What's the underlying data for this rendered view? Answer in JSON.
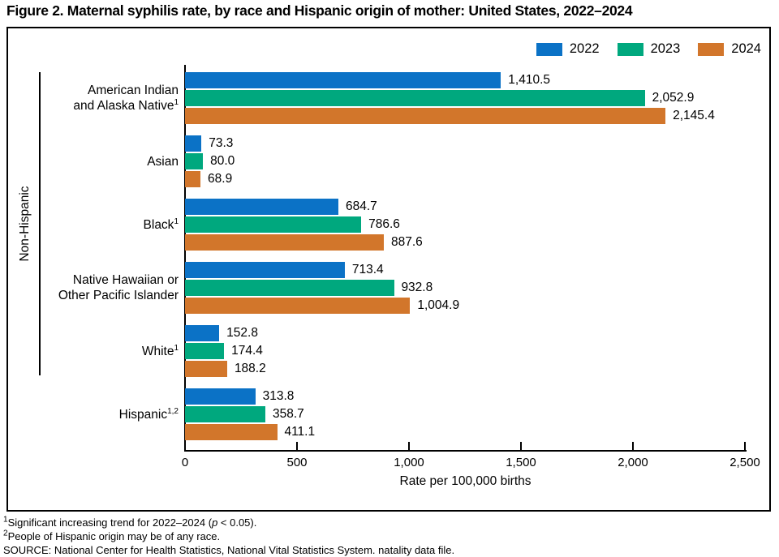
{
  "page_title": "Figure 2. Maternal syphilis rate, by race and Hispanic origin of mother: United States, 2022–2024",
  "chart_data": {
    "type": "bar",
    "orientation": "horizontal",
    "title": "Figure 2. Maternal syphilis rate, by race and Hispanic origin of mother: United States, 2022–2024",
    "xlabel": "Rate per 100,000 births",
    "xlim": [
      0,
      2500
    ],
    "x_ticks": [
      "0",
      "500",
      "1,000",
      "1,500",
      "2,000",
      "2,500"
    ],
    "x_tick_values": [
      0,
      500,
      1000,
      1500,
      2000,
      2500
    ],
    "grid": false,
    "legend_position": "top-right",
    "categories": [
      "American Indian and Alaska Native",
      "Asian",
      "Black",
      "Native Hawaiian or Other Pacific Islander",
      "White",
      "Hispanic"
    ],
    "category_display": [
      {
        "lines": [
          "American Indian",
          "and Alaska Native"
        ],
        "sup": "1"
      },
      {
        "lines": [
          "Asian"
        ],
        "sup": ""
      },
      {
        "lines": [
          "Black"
        ],
        "sup": "1"
      },
      {
        "lines": [
          "Native Hawaiian or",
          "Other Pacific Islander"
        ],
        "sup": ""
      },
      {
        "lines": [
          "White"
        ],
        "sup": "1"
      },
      {
        "lines": [
          "Hispanic"
        ],
        "sup": "1,2"
      }
    ],
    "series": [
      {
        "name": "2022",
        "color": "#0b72c6",
        "values": [
          1410.5,
          73.3,
          684.7,
          713.4,
          152.8,
          313.8
        ]
      },
      {
        "name": "2023",
        "color": "#00a87e",
        "values": [
          2052.9,
          80.0,
          786.6,
          932.8,
          174.4,
          358.7
        ]
      },
      {
        "name": "2024",
        "color": "#d2762b",
        "values": [
          2145.4,
          68.9,
          887.6,
          1004.9,
          188.2,
          411.1
        ]
      }
    ],
    "value_labels": [
      [
        "1,410.5",
        "2,052.9",
        "2,145.4"
      ],
      [
        "73.3",
        "80.0",
        "68.9"
      ],
      [
        "684.7",
        "786.6",
        "887.6"
      ],
      [
        "713.4",
        "932.8",
        "1,004.9"
      ],
      [
        "152.8",
        "174.4",
        "188.2"
      ],
      [
        "313.8",
        "358.7",
        "411.1"
      ]
    ],
    "group_bracket": {
      "label": "Non-Hispanic",
      "covers": [
        "American Indian and Alaska Native",
        "Asian",
        "Black",
        "Native Hawaiian or Other Pacific Islander",
        "White"
      ]
    }
  },
  "footnotes": {
    "fn1": {
      "sup": "1",
      "pre": "Significant increasing trend for 2022–2024 (",
      "italic": "p",
      "post": " < 0.05)."
    },
    "fn2": {
      "sup": "2",
      "text": "People of Hispanic origin may be of any race."
    },
    "source": "SOURCE: National Center for Health Statistics, National Vital Statistics System. natality data file."
  }
}
